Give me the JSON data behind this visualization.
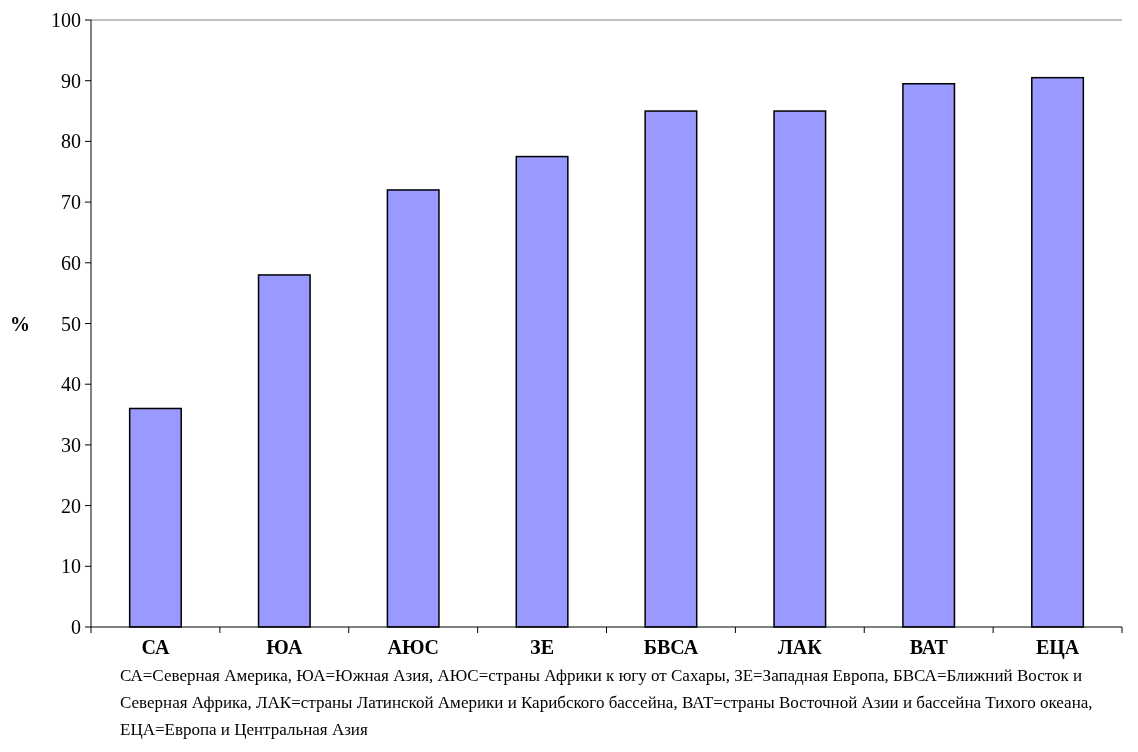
{
  "chart_data": {
    "type": "bar",
    "ylabel": "%",
    "categories": [
      "СА",
      "ЮА",
      "АЮС",
      "ЗЕ",
      "БВСА",
      "ЛАК",
      "ВАТ",
      "ЕЦА"
    ],
    "values": [
      36,
      58,
      72,
      77.5,
      85,
      85,
      89.5,
      90.5
    ],
    "color": "#9999ff",
    "ylim": [
      0,
      100
    ],
    "yticks": [
      0,
      10,
      20,
      30,
      40,
      50,
      60,
      70,
      80,
      90,
      100
    ],
    "grid": false,
    "annotations": [
      "СА=Северная Америка, ЮА=Южная Азия, АЮС=страны Африки к югу от Сахары, ЗЕ=Западная Европа, БВСА=Ближний Восток и Северная Африка, ЛАК=страны Латинской Америки и Карибского бассейна, ВАТ=страны Восточной Азии и бассейна Тихого океана, ЕЦА=Европа и Центральная Азия"
    ]
  }
}
